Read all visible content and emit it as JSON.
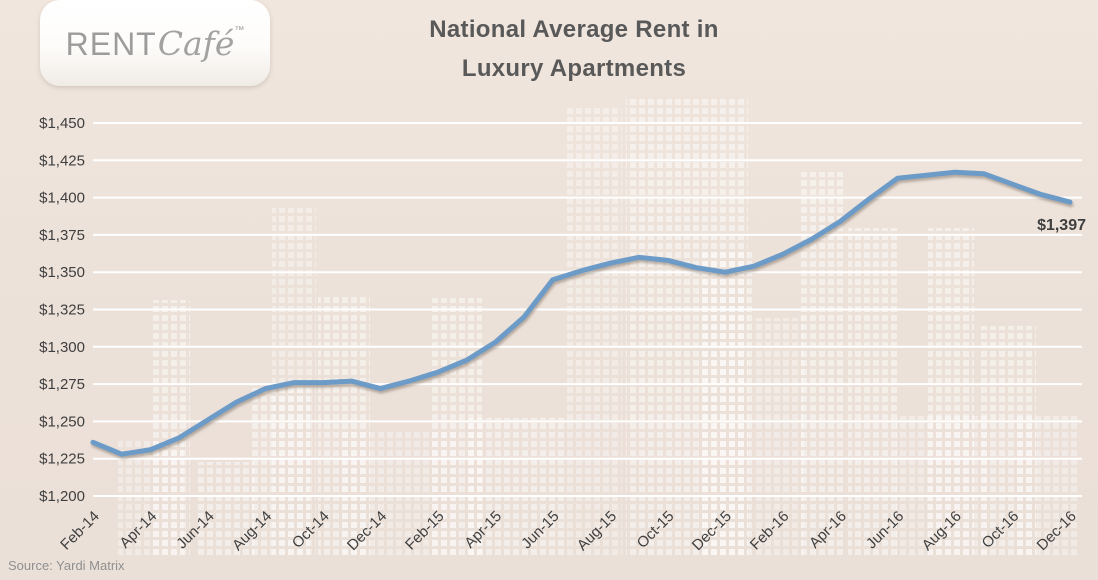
{
  "logo": {
    "brand": "RENT",
    "brand_script": "Café",
    "trademark": "™"
  },
  "title": {
    "line1": "National Average Rent in",
    "line2": "Luxury Apartments"
  },
  "source_note": "Source: Yardi Matrix",
  "colors": {
    "background": "#ece1d9",
    "background_top": "#f0e6de",
    "pattern_window": "#ffffff",
    "line": "#6d9bc7",
    "gridline": "#ffffff",
    "title_text": "#595959",
    "axis_text": "#3f3f3f",
    "logo_text": "#9c9c9c",
    "source_text": "#8f8f8f",
    "value_label_text": "#3f3f3f"
  },
  "chart_data": {
    "type": "line",
    "title": "National Average Rent in Luxury Apartments",
    "x": [
      "Feb-14",
      "Mar-14",
      "Apr-14",
      "May-14",
      "Jun-14",
      "Jul-14",
      "Aug-14",
      "Sep-14",
      "Oct-14",
      "Nov-14",
      "Dec-14",
      "Jan-15",
      "Feb-15",
      "Mar-15",
      "Apr-15",
      "May-15",
      "Jun-15",
      "Jul-15",
      "Aug-15",
      "Sep-15",
      "Oct-15",
      "Nov-15",
      "Dec-15",
      "Jan-16",
      "Feb-16",
      "Mar-16",
      "Apr-16",
      "May-16",
      "Jun-16",
      "Jul-16",
      "Aug-16",
      "Sep-16",
      "Oct-16",
      "Nov-16",
      "Dec-16"
    ],
    "values": [
      1236,
      1228,
      1231,
      1239,
      1251,
      1263,
      1272,
      1276,
      1276,
      1277,
      1272,
      1277,
      1283,
      1291,
      1303,
      1320,
      1345,
      1351,
      1356,
      1360,
      1358,
      1353,
      1350,
      1354,
      1362,
      1372,
      1384,
      1399,
      1413,
      1415,
      1417,
      1416,
      1409,
      1402,
      1397
    ],
    "x_tick_labels": [
      "Feb-14",
      "Apr-14",
      "Jun-14",
      "Aug-14",
      "Oct-14",
      "Dec-14",
      "Feb-15",
      "Apr-15",
      "Jun-15",
      "Aug-15",
      "Oct-15",
      "Dec-15",
      "Feb-16",
      "Apr-16",
      "Jun-16",
      "Aug-16",
      "Oct-16",
      "Dec-16"
    ],
    "x_label_interval": 2,
    "xlabel": "",
    "ylabel": "",
    "ylim": [
      1200,
      1450
    ],
    "y_tick_step": 25,
    "y_tick_prefix": "$",
    "grid": "horizontal",
    "legend": "none",
    "line_color": "#6d9bc7",
    "last_point_label": "$1,397"
  }
}
